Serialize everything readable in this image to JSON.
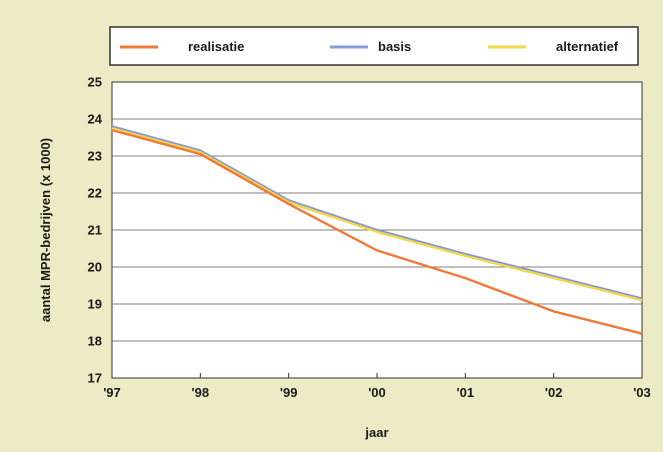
{
  "chart_data": {
    "type": "line",
    "x": [
      "'97",
      "'98",
      "'99",
      "'00",
      "'01",
      "'02",
      "'03"
    ],
    "xlabel": "jaar",
    "ylabel": "aantal MPR-bedrijven (x 1000)",
    "ylim": [
      17,
      25
    ],
    "yticks": [
      "17",
      "18",
      "19",
      "20",
      "21",
      "22",
      "23",
      "24",
      "25"
    ],
    "grid": true,
    "legend_position": "top",
    "series": [
      {
        "name": "realisatie",
        "color": "#f07a3a",
        "values": [
          23.7,
          23.05,
          21.7,
          20.45,
          19.7,
          18.8,
          18.2
        ]
      },
      {
        "name": "basis",
        "color": "#8899d8",
        "values": [
          23.8,
          23.15,
          21.8,
          21.0,
          20.35,
          19.75,
          19.15
        ]
      },
      {
        "name": "alternatief",
        "color": "#f2d84a",
        "values": [
          23.75,
          23.1,
          21.75,
          20.95,
          20.3,
          19.7,
          19.1
        ]
      }
    ]
  }
}
